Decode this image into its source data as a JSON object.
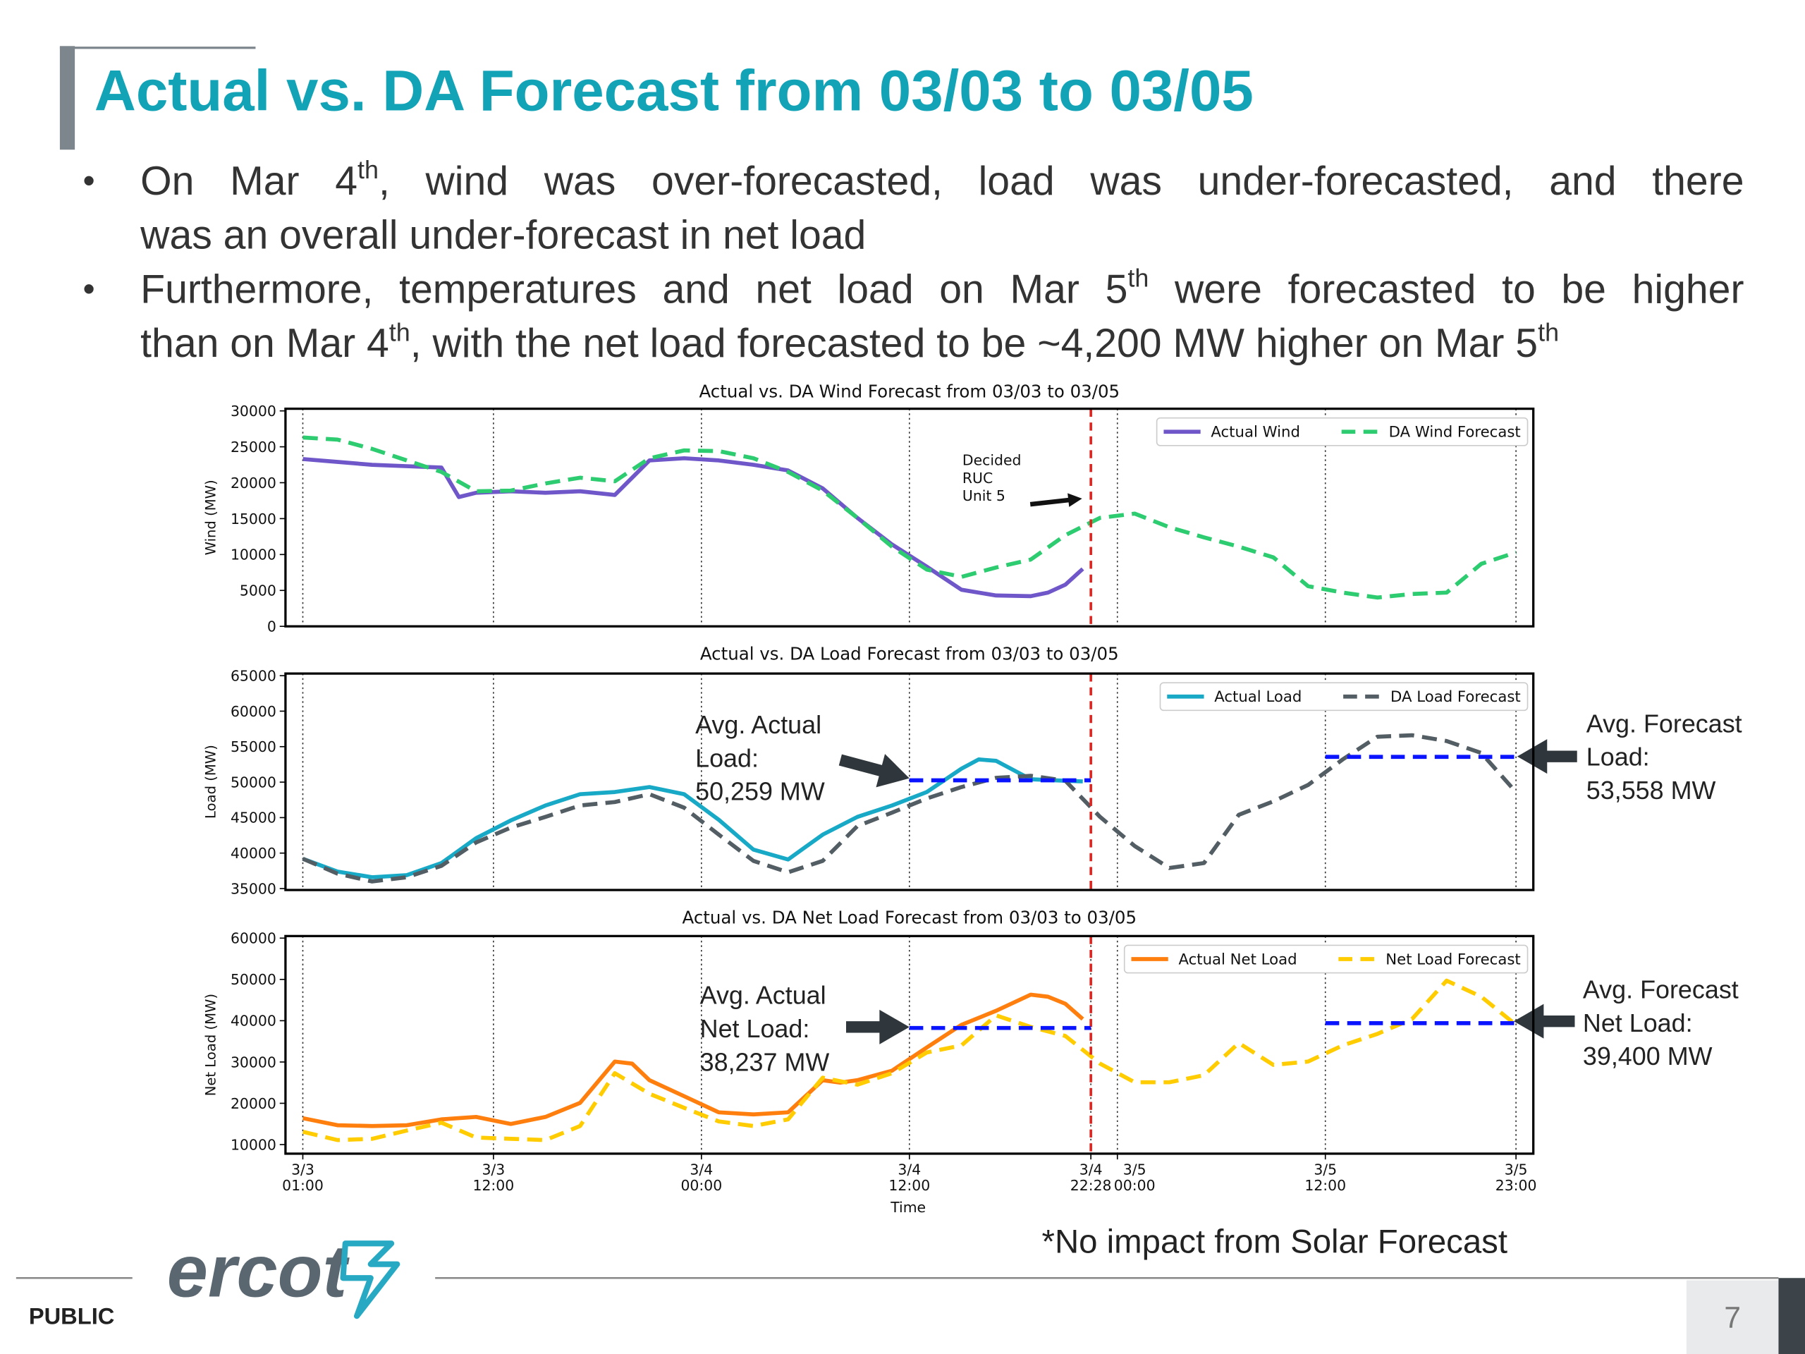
{
  "title": "Actual vs. DA Forecast from 03/03 to 03/05",
  "bullets": [
    [
      [
        "On Mar 4",
        "th",
        ", wind was over-forecasted, load was under-forecasted, and there"
      ],
      [
        "was an overall under-forecast in net load"
      ]
    ],
    [
      [
        "Furthermore, temperatures and net load on Mar 5",
        "th",
        " were forecasted to be higher"
      ],
      [
        "than on Mar 4",
        "th",
        ", with the net load forecasted to be ~4,200 MW higher on Mar 5",
        "th"
      ]
    ]
  ],
  "footer": {
    "logo": "ercot",
    "label": "PUBLIC",
    "page": "7",
    "note": "*No impact from Solar Forecast"
  },
  "chart_data": [
    {
      "type": "line",
      "title": "Actual vs. DA Wind Forecast from 03/03 to 03/05",
      "ylabel": "Wind (MW)",
      "xlim": [
        0,
        72
      ],
      "ylim": [
        0,
        30300
      ],
      "yticks": [
        0,
        5000,
        10000,
        15000,
        20000,
        25000,
        30000
      ],
      "vlines": [
        1,
        12,
        24,
        36,
        48,
        60,
        71
      ],
      "decision_line": 46.47,
      "legend": "upper right",
      "annotation": "Decided\nRUC\nUnit 5",
      "series": [
        {
          "name": "Actual Wind",
          "color": "#7057c9",
          "style": "solid",
          "x": [
            1,
            3,
            5,
            7,
            9,
            10,
            11,
            13,
            15,
            17,
            19,
            21,
            23,
            25,
            27,
            29,
            31,
            33,
            35,
            37,
            39,
            41,
            43,
            44,
            45,
            46
          ],
          "values": [
            23300,
            22900,
            22500,
            22300,
            22100,
            18000,
            18600,
            18800,
            18600,
            18800,
            18300,
            23100,
            23400,
            23100,
            22500,
            21700,
            19200,
            15100,
            11400,
            8300,
            5100,
            4300,
            4200,
            4700,
            5800,
            8000
          ]
        },
        {
          "name": "DA Wind Forecast",
          "color": "#2ecc71",
          "style": "dashed",
          "x": [
            1,
            3,
            5,
            7,
            9,
            11,
            13,
            15,
            17,
            19,
            21,
            23,
            25,
            27,
            29,
            31,
            33,
            35,
            37,
            39,
            41,
            43,
            45,
            47,
            49,
            51,
            53,
            55,
            57,
            59,
            61,
            63,
            65,
            67,
            69,
            71
          ],
          "values": [
            26300,
            26000,
            24700,
            23100,
            21500,
            18800,
            18900,
            19900,
            20700,
            20200,
            23400,
            24500,
            24400,
            23400,
            21500,
            18900,
            15100,
            11100,
            7900,
            6900,
            8200,
            9300,
            12700,
            15100,
            15700,
            13800,
            12400,
            11100,
            9600,
            5600,
            4700,
            4000,
            4500,
            4700,
            8700,
            10300
          ]
        }
      ]
    },
    {
      "type": "line",
      "title": "Actual vs. DA Load Forecast from 03/03 to 03/05",
      "ylabel": "Load (MW)",
      "xlim": [
        0,
        72
      ],
      "ylim": [
        34800,
        65300
      ],
      "yticks": [
        35000,
        40000,
        45000,
        50000,
        55000,
        60000,
        65000
      ],
      "vlines": [
        1,
        12,
        24,
        36,
        48,
        60,
        71
      ],
      "decision_line": 46.47,
      "legend": "upper right",
      "series": [
        {
          "name": "Actual Load",
          "color": "#17a9c6",
          "style": "solid",
          "x": [
            1,
            3,
            5,
            7,
            9,
            11,
            13,
            15,
            17,
            19,
            21,
            23,
            25,
            27,
            29,
            31,
            33,
            35,
            37,
            39,
            40,
            41,
            43,
            45,
            46
          ],
          "values": [
            39200,
            37400,
            36600,
            36900,
            38600,
            42100,
            44600,
            46700,
            48300,
            48600,
            49300,
            48300,
            44700,
            40500,
            39100,
            42600,
            45100,
            46700,
            48600,
            51900,
            53200,
            53000,
            50400,
            50200,
            50100
          ]
        },
        {
          "name": "DA Load Forecast",
          "color": "#535d64",
          "style": "dashed",
          "x": [
            1,
            3,
            5,
            7,
            9,
            11,
            13,
            15,
            17,
            19,
            21,
            23,
            25,
            27,
            29,
            31,
            33,
            35,
            37,
            39,
            41,
            43,
            45,
            47,
            49,
            51,
            53,
            55,
            57,
            59,
            61,
            63,
            65,
            67,
            69,
            71
          ],
          "values": [
            39200,
            37100,
            36000,
            36600,
            38200,
            41500,
            43600,
            45100,
            46700,
            47200,
            48300,
            46400,
            42600,
            38900,
            37300,
            38900,
            43800,
            45700,
            47700,
            49300,
            50600,
            50900,
            50200,
            45100,
            41000,
            37900,
            38600,
            45400,
            47300,
            49600,
            53200,
            56400,
            56600,
            55800,
            54100,
            48600
          ]
        }
      ],
      "averages": [
        {
          "text": "Avg. Actual\nLoad:\n50,259 MW",
          "value": 50259,
          "x": [
            36,
            46.47
          ]
        },
        {
          "text": "Avg. Forecast\nLoad:\n53,558 MW",
          "value": 53558,
          "x": [
            60,
            71
          ]
        }
      ]
    },
    {
      "type": "line",
      "title": "Actual vs. DA Net Load Forecast from 03/03 to 03/05",
      "ylabel": "Net Load (MW)",
      "xlabel": "Time",
      "xlim": [
        0,
        72
      ],
      "ylim": [
        7800,
        60500
      ],
      "yticks": [
        10000,
        20000,
        30000,
        40000,
        50000,
        60000
      ],
      "xticks": [
        {
          "value": 1,
          "label": "3/3\n01:00"
        },
        {
          "value": 12,
          "label": "3/3\n12:00"
        },
        {
          "value": 24,
          "label": "3/4\n00:00"
        },
        {
          "value": 36,
          "label": "3/4\n12:00"
        },
        {
          "value": 46.47,
          "label": "3/4\n22:28"
        },
        {
          "value": 48,
          "label": "3/5\n00:00"
        },
        {
          "value": 60,
          "label": "3/5\n12:00"
        },
        {
          "value": 71,
          "label": "3/5\n23:00"
        }
      ],
      "decision_line": 46.47,
      "legend": "upper right",
      "series": [
        {
          "name": "Actual Net Load",
          "color": "#ff7f0e",
          "style": "solid",
          "x": [
            1,
            3,
            5,
            7,
            9,
            11,
            13,
            15,
            17,
            19,
            20,
            21,
            23,
            25,
            27,
            29,
            31,
            32,
            33,
            35,
            37,
            39,
            41,
            43,
            44,
            45,
            46
          ],
          "values": [
            16400,
            14700,
            14500,
            14700,
            16100,
            16700,
            15000,
            16700,
            20100,
            30100,
            29600,
            25600,
            21700,
            17800,
            17300,
            17800,
            25600,
            25000,
            25600,
            27900,
            33500,
            39000,
            42400,
            46300,
            45800,
            44100,
            40400
          ]
        },
        {
          "name": "Net Load Forecast",
          "color": "#ffcc00",
          "style": "dashed",
          "x": [
            1,
            3,
            5,
            7,
            9,
            11,
            13,
            15,
            17,
            19,
            21,
            23,
            25,
            27,
            29,
            31,
            33,
            35,
            37,
            39,
            41,
            43,
            45,
            47,
            49,
            51,
            53,
            55,
            57,
            59,
            61,
            63,
            65,
            67,
            69,
            71
          ],
          "values": [
            13100,
            11100,
            11400,
            13400,
            15300,
            11700,
            11400,
            11100,
            14500,
            27300,
            22300,
            18900,
            15600,
            14500,
            16100,
            26200,
            24500,
            27300,
            32300,
            34000,
            41300,
            38500,
            36300,
            29600,
            25100,
            25100,
            26800,
            34600,
            29300,
            30100,
            34000,
            36800,
            40400,
            49700,
            45800,
            39000
          ]
        }
      ],
      "averages": [
        {
          "text": "Avg. Actual\nNet Load:\n38,237 MW",
          "value": 38237,
          "x": [
            36,
            46.47
          ]
        },
        {
          "text": "Avg. Forecast\nNet Load:\n39,400 MW",
          "value": 39400,
          "x": [
            60,
            71
          ]
        }
      ]
    }
  ]
}
